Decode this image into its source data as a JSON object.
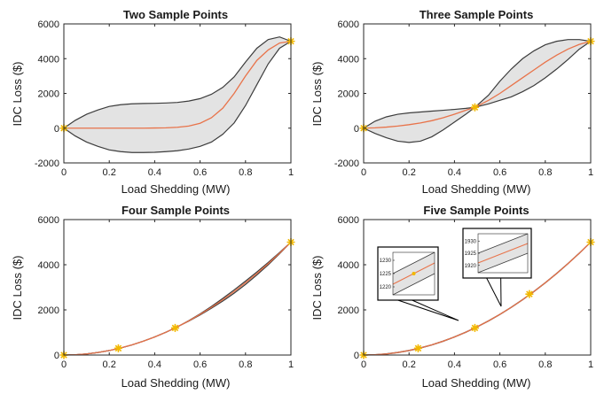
{
  "colors": {
    "mean": "#e8734a",
    "band": "#e3e3e3",
    "band_edge": "#3c3c3c",
    "marker": "#f2b800",
    "axis": "#262626"
  },
  "chart_data": [
    {
      "type": "line",
      "title": "Two Sample Points",
      "xlabel": "Load Shedding (MW)",
      "ylabel": "IDC Loss ($)",
      "xlim": [
        0,
        1
      ],
      "ylim": [
        -2000,
        6000
      ],
      "xticks": [
        "0",
        "0.2",
        "0.4",
        "0.6",
        "0.8",
        "1"
      ],
      "yticks": [
        "-2000",
        "0",
        "2000",
        "4000",
        "6000"
      ],
      "grid": false,
      "sample_points": {
        "x": [
          0,
          1
        ],
        "y": [
          0,
          5000
        ]
      },
      "series": [
        {
          "x": [
            0,
            0.05,
            0.1,
            0.15,
            0.2,
            0.25,
            0.3,
            0.35,
            0.4,
            0.45,
            0.5,
            0.55,
            0.6,
            0.65,
            0.7,
            0.75,
            0.8,
            0.85,
            0.9,
            0.95,
            1
          ],
          "values": [
            0,
            0,
            0,
            0,
            0,
            0,
            0,
            0,
            10,
            20,
            50,
            120,
            280,
            600,
            1150,
            2000,
            3000,
            3900,
            4500,
            4900,
            5000
          ]
        },
        {
          "x": [
            0,
            0.05,
            0.1,
            0.15,
            0.2,
            0.25,
            0.3,
            0.35,
            0.4,
            0.45,
            0.5,
            0.55,
            0.6,
            0.65,
            0.7,
            0.75,
            0.8,
            0.85,
            0.9,
            0.95,
            1
          ],
          "values": [
            0,
            450,
            800,
            1050,
            1250,
            1350,
            1400,
            1420,
            1430,
            1450,
            1480,
            1560,
            1700,
            1950,
            2350,
            2950,
            3800,
            4600,
            5100,
            5250,
            5000
          ]
        },
        {
          "x": [
            0,
            0.05,
            0.1,
            0.15,
            0.2,
            0.25,
            0.3,
            0.35,
            0.4,
            0.45,
            0.5,
            0.55,
            0.6,
            0.65,
            0.7,
            0.75,
            0.8,
            0.85,
            0.9,
            0.95,
            1
          ],
          "values": [
            0,
            -450,
            -800,
            -1050,
            -1250,
            -1350,
            -1400,
            -1400,
            -1390,
            -1350,
            -1300,
            -1200,
            -1050,
            -800,
            -350,
            300,
            1300,
            2500,
            3700,
            4600,
            5000
          ]
        }
      ]
    },
    {
      "type": "line",
      "title": "Three Sample Points",
      "xlabel": "Load Shedding (MW)",
      "ylabel": "IDC Loss ($)",
      "xlim": [
        0,
        1
      ],
      "ylim": [
        -2000,
        6000
      ],
      "xticks": [
        "0",
        "0.2",
        "0.4",
        "0.6",
        "0.8",
        "1"
      ],
      "yticks": [
        "-2000",
        "0",
        "2000",
        "4000",
        "6000"
      ],
      "grid": false,
      "sample_points": {
        "x": [
          0,
          0.49,
          1
        ],
        "y": [
          0,
          1200,
          5000
        ]
      },
      "series": [
        {
          "x": [
            0,
            0.05,
            0.1,
            0.15,
            0.2,
            0.25,
            0.3,
            0.35,
            0.4,
            0.45,
            0.49,
            0.55,
            0.6,
            0.65,
            0.7,
            0.75,
            0.8,
            0.85,
            0.9,
            0.95,
            1
          ],
          "values": [
            0,
            20,
            60,
            120,
            200,
            300,
            430,
            600,
            800,
            1030,
            1200,
            1600,
            2000,
            2450,
            2900,
            3350,
            3800,
            4200,
            4550,
            4820,
            5000
          ]
        },
        {
          "x": [
            0,
            0.05,
            0.1,
            0.15,
            0.2,
            0.25,
            0.3,
            0.35,
            0.4,
            0.45,
            0.49,
            0.55,
            0.6,
            0.65,
            0.7,
            0.75,
            0.8,
            0.85,
            0.9,
            0.95,
            1
          ],
          "values": [
            0,
            400,
            650,
            800,
            880,
            930,
            980,
            1030,
            1080,
            1140,
            1200,
            1900,
            2700,
            3400,
            4000,
            4450,
            4800,
            5000,
            5100,
            5100,
            5000
          ]
        },
        {
          "x": [
            0,
            0.05,
            0.1,
            0.15,
            0.2,
            0.25,
            0.3,
            0.35,
            0.4,
            0.45,
            0.49,
            0.55,
            0.6,
            0.65,
            0.7,
            0.75,
            0.8,
            0.85,
            0.9,
            0.95,
            1
          ],
          "values": [
            0,
            -300,
            -550,
            -750,
            -820,
            -750,
            -500,
            -100,
            350,
            800,
            1200,
            1400,
            1600,
            1800,
            2100,
            2450,
            2900,
            3400,
            3950,
            4550,
            5000
          ]
        }
      ]
    },
    {
      "type": "line",
      "title": "Four Sample Points",
      "xlabel": "Load Shedding (MW)",
      "ylabel": "IDC Loss ($)",
      "xlim": [
        0,
        1
      ],
      "ylim": [
        0,
        6000
      ],
      "xticks": [
        "0",
        "0.2",
        "0.4",
        "0.6",
        "0.8",
        "1"
      ],
      "yticks": [
        "0",
        "2000",
        "4000",
        "6000"
      ],
      "grid": false,
      "sample_points": {
        "x": [
          0,
          0.24,
          0.49,
          1
        ],
        "y": [
          0,
          300,
          1200,
          5000
        ]
      },
      "series": [
        {
          "x": [
            0,
            0.05,
            0.1,
            0.15,
            0.2,
            0.25,
            0.3,
            0.35,
            0.4,
            0.45,
            0.5,
            0.55,
            0.6,
            0.65,
            0.7,
            0.75,
            0.8,
            0.85,
            0.9,
            0.95,
            1
          ],
          "values": [
            0,
            13,
            50,
            113,
            200,
            313,
            450,
            613,
            800,
            1013,
            1250,
            1513,
            1800,
            2113,
            2450,
            2813,
            3200,
            3613,
            4050,
            4513,
            5000
          ]
        },
        {
          "x": [
            0,
            0.05,
            0.1,
            0.15,
            0.2,
            0.25,
            0.3,
            0.35,
            0.4,
            0.45,
            0.5,
            0.55,
            0.6,
            0.65,
            0.7,
            0.75,
            0.8,
            0.85,
            0.9,
            0.95,
            1
          ],
          "values": [
            0,
            13,
            50,
            113,
            200,
            313,
            450,
            613,
            800,
            1013,
            1250,
            1525,
            1825,
            2150,
            2510,
            2885,
            3275,
            3680,
            4100,
            4540,
            5000
          ]
        },
        {
          "x": [
            0,
            0.05,
            0.1,
            0.15,
            0.2,
            0.25,
            0.3,
            0.35,
            0.4,
            0.45,
            0.5,
            0.55,
            0.6,
            0.65,
            0.7,
            0.75,
            0.8,
            0.85,
            0.9,
            0.95,
            1
          ],
          "values": [
            0,
            13,
            50,
            113,
            200,
            313,
            450,
            613,
            800,
            1013,
            1250,
            1500,
            1775,
            2075,
            2390,
            2740,
            3125,
            3545,
            4000,
            4485,
            5000
          ]
        }
      ]
    },
    {
      "type": "line",
      "title": "Five Sample Points",
      "xlabel": "Load Shedding (MW)",
      "ylabel": "IDC Loss ($)",
      "xlim": [
        0,
        1
      ],
      "ylim": [
        0,
        6000
      ],
      "xticks": [
        "0",
        "0.2",
        "0.4",
        "0.6",
        "0.8",
        "1"
      ],
      "yticks": [
        "0",
        "2000",
        "4000",
        "6000"
      ],
      "grid": false,
      "sample_points": {
        "x": [
          0,
          0.24,
          0.49,
          0.73,
          1
        ],
        "y": [
          0,
          300,
          1200,
          2700,
          5000
        ]
      },
      "series": [
        {
          "x": [
            0,
            0.05,
            0.1,
            0.15,
            0.2,
            0.25,
            0.3,
            0.35,
            0.4,
            0.45,
            0.5,
            0.55,
            0.6,
            0.65,
            0.7,
            0.75,
            0.8,
            0.85,
            0.9,
            0.95,
            1
          ],
          "values": [
            0,
            13,
            50,
            113,
            200,
            313,
            450,
            613,
            800,
            1013,
            1250,
            1513,
            1800,
            2113,
            2450,
            2813,
            3200,
            3613,
            4050,
            4513,
            5000
          ]
        },
        {
          "x": [
            0,
            0.05,
            0.1,
            0.15,
            0.2,
            0.25,
            0.3,
            0.35,
            0.4,
            0.45,
            0.5,
            0.55,
            0.6,
            0.65,
            0.7,
            0.75,
            0.8,
            0.85,
            0.9,
            0.95,
            1
          ],
          "values": [
            0,
            18,
            55,
            118,
            205,
            318,
            455,
            618,
            805,
            1018,
            1255,
            1518,
            1805,
            2118,
            2455,
            2818,
            3205,
            3618,
            4055,
            4518,
            5000
          ]
        },
        {
          "x": [
            0,
            0.05,
            0.1,
            0.15,
            0.2,
            0.25,
            0.3,
            0.35,
            0.4,
            0.45,
            0.5,
            0.55,
            0.6,
            0.65,
            0.7,
            0.75,
            0.8,
            0.85,
            0.9,
            0.95,
            1
          ],
          "values": [
            0,
            8,
            45,
            108,
            195,
            308,
            445,
            608,
            795,
            1008,
            1245,
            1508,
            1795,
            2108,
            2445,
            2808,
            3195,
            3608,
            4045,
            4508,
            5000
          ]
        }
      ],
      "insets": [
        {
          "x": [
            0.4,
            0.6
          ],
          "yticks": [
            "1220",
            "1225",
            "1230"
          ],
          "ylim": [
            1217,
            1233
          ],
          "mean": [
            1221,
            1229
          ],
          "upper": [
            1225,
            1233
          ],
          "lower": [
            1217,
            1225
          ],
          "marker_y": 1225
        },
        {
          "x": [
            0.4,
            0.6
          ],
          "yticks": [
            "1920",
            "1925",
            "1930"
          ],
          "ylim": [
            1917,
            1933
          ],
          "mean": [
            1921,
            1929
          ],
          "upper": [
            1925,
            1933
          ],
          "lower": [
            1917,
            1925
          ]
        }
      ]
    }
  ]
}
